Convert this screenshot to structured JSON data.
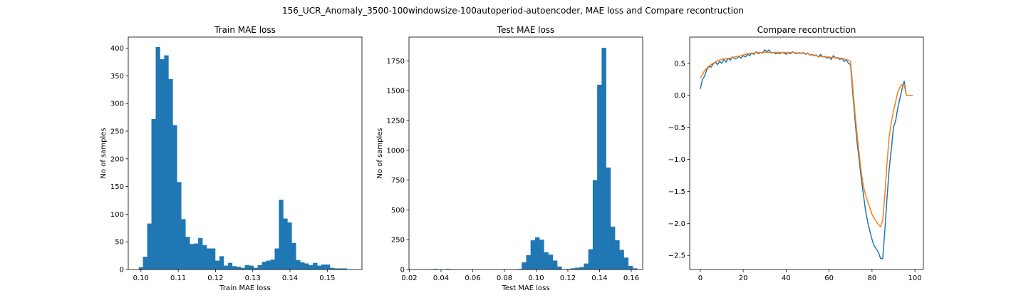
{
  "figure": {
    "suptitle": "156_UCR_Anomaly_3500-100windowsize-100autoperiod-autoencoder, MAE loss and Compare recontruction"
  },
  "chart_data": [
    {
      "type": "bar",
      "title": "Train MAE loss",
      "xlabel": "Train MAE loss",
      "ylabel": "No of samples",
      "color": "#1f77b4",
      "xlim": [
        0.0966,
        0.1593
      ],
      "ylim": [
        0,
        420
      ],
      "xticks": [
        0.1,
        0.11,
        0.12,
        0.13,
        0.14,
        0.15
      ],
      "xtick_labels": [
        "0.10",
        "0.11",
        "0.12",
        "0.13",
        "0.14",
        "0.15"
      ],
      "yticks": [
        0,
        50,
        100,
        150,
        200,
        250,
        300,
        350,
        400
      ],
      "ytick_labels": [
        "0",
        "50",
        "100",
        "150",
        "200",
        "250",
        "300",
        "350",
        "400"
      ],
      "bin_start": 0.0994,
      "bin_width": 0.00114,
      "values": [
        4,
        23,
        83,
        272,
        402,
        380,
        387,
        344,
        261,
        158,
        91,
        59,
        46,
        47,
        57,
        44,
        38,
        38,
        16,
        24,
        7,
        12,
        6,
        5,
        3,
        8,
        7,
        3,
        8,
        14,
        16,
        18,
        38,
        126,
        92,
        85,
        48,
        17,
        13,
        11,
        8,
        12,
        7,
        9,
        9,
        3,
        2,
        2,
        2,
        0
      ]
    },
    {
      "type": "bar",
      "title": "Test MAE loss",
      "xlabel": "Test MAE loss",
      "ylabel": "No of samples",
      "color": "#1f77b4",
      "xlim": [
        0.0198,
        0.1672
      ],
      "ylim": [
        0,
        1950
      ],
      "xticks": [
        0.02,
        0.04,
        0.06,
        0.08,
        0.1,
        0.12,
        0.14,
        0.16
      ],
      "xtick_labels": [
        "0.02",
        "0.04",
        "0.06",
        "0.08",
        "0.10",
        "0.12",
        "0.14",
        "0.16"
      ],
      "yticks": [
        0,
        250,
        500,
        750,
        1000,
        1250,
        1500,
        1750
      ],
      "ytick_labels": [
        "0",
        "250",
        "500",
        "750",
        "1000",
        "1250",
        "1500",
        "1750"
      ],
      "bin_start": 0.0265,
      "bin_width": 0.0028,
      "values": [
        3,
        2,
        0,
        5,
        0,
        0,
        5,
        0,
        0,
        0,
        0,
        0,
        0,
        0,
        0,
        0,
        0,
        0,
        0,
        0,
        0,
        0,
        5,
        60,
        120,
        245,
        270,
        250,
        145,
        125,
        75,
        25,
        3,
        5,
        10,
        15,
        20,
        50,
        170,
        750,
        1550,
        1860,
        855,
        360,
        245,
        165,
        100,
        30,
        10,
        0
      ]
    },
    {
      "type": "line",
      "title": "Compare recontruction",
      "xlabel": "",
      "ylabel": "",
      "xlim": [
        -4.95,
        103.95
      ],
      "ylim": [
        -2.72,
        0.91
      ],
      "xticks": [
        0,
        20,
        40,
        60,
        80,
        100
      ],
      "xtick_labels": [
        "0",
        "20",
        "40",
        "60",
        "80",
        "100"
      ],
      "yticks": [
        -2.5,
        -2.0,
        -1.5,
        -1.0,
        -0.5,
        0.0,
        0.5
      ],
      "ytick_labels": [
        "−2.5",
        "−2.0",
        "−1.5",
        "−1.0",
        "−0.5",
        "0.0",
        "0.5"
      ],
      "x": [
        0,
        1,
        2,
        3,
        4,
        5,
        6,
        7,
        8,
        9,
        10,
        11,
        12,
        13,
        14,
        15,
        16,
        17,
        18,
        19,
        20,
        21,
        22,
        23,
        24,
        25,
        26,
        27,
        28,
        29,
        30,
        31,
        32,
        33,
        34,
        35,
        36,
        37,
        38,
        39,
        40,
        41,
        42,
        43,
        44,
        45,
        46,
        47,
        48,
        49,
        50,
        51,
        52,
        53,
        54,
        55,
        56,
        57,
        58,
        59,
        60,
        61,
        62,
        63,
        64,
        65,
        66,
        67,
        68,
        69,
        70,
        71,
        72,
        73,
        74,
        75,
        76,
        77,
        78,
        79,
        80,
        81,
        82,
        83,
        84,
        85,
        86,
        87,
        88,
        89,
        90,
        91,
        92,
        93,
        94,
        95,
        96,
        97,
        98,
        99
      ],
      "series": [
        {
          "color": "#1f77b4",
          "values": [
            0.1,
            0.25,
            0.3,
            0.4,
            0.45,
            0.44,
            0.49,
            0.52,
            0.48,
            0.53,
            0.5,
            0.56,
            0.52,
            0.58,
            0.55,
            0.6,
            0.57,
            0.58,
            0.61,
            0.58,
            0.62,
            0.6,
            0.64,
            0.62,
            0.66,
            0.64,
            0.68,
            0.65,
            0.67,
            0.66,
            0.71,
            0.68,
            0.71,
            0.66,
            0.67,
            0.65,
            0.66,
            0.65,
            0.67,
            0.66,
            0.64,
            0.67,
            0.65,
            0.68,
            0.66,
            0.65,
            0.67,
            0.65,
            0.67,
            0.64,
            0.66,
            0.63,
            0.64,
            0.62,
            0.63,
            0.6,
            0.64,
            0.6,
            0.61,
            0.58,
            0.6,
            0.56,
            0.62,
            0.58,
            0.59,
            0.56,
            0.58,
            0.53,
            0.56,
            0.5,
            0.48,
            0.05,
            -0.35,
            -0.72,
            -1.0,
            -1.3,
            -1.55,
            -1.8,
            -1.98,
            -2.12,
            -2.25,
            -2.35,
            -2.4,
            -2.45,
            -2.55,
            -2.55,
            -2.1,
            -1.6,
            -1.15,
            -0.85,
            -0.5,
            -0.4,
            -0.2,
            -0.05,
            0.1,
            0.22,
            0.0,
            0.0,
            0.0,
            0.0
          ]
        },
        {
          "color": "#ff7f0e",
          "values": [
            0.27,
            0.32,
            0.39,
            0.42,
            0.46,
            0.48,
            0.5,
            0.52,
            0.54,
            0.55,
            0.56,
            0.57,
            0.57,
            0.58,
            0.58,
            0.59,
            0.6,
            0.61,
            0.61,
            0.62,
            0.63,
            0.64,
            0.65,
            0.65,
            0.66,
            0.66,
            0.67,
            0.67,
            0.67,
            0.67,
            0.67,
            0.67,
            0.67,
            0.67,
            0.67,
            0.67,
            0.67,
            0.67,
            0.67,
            0.67,
            0.67,
            0.67,
            0.67,
            0.67,
            0.67,
            0.66,
            0.66,
            0.66,
            0.66,
            0.65,
            0.65,
            0.64,
            0.63,
            0.62,
            0.62,
            0.61,
            0.61,
            0.6,
            0.6,
            0.6,
            0.6,
            0.59,
            0.59,
            0.59,
            0.58,
            0.58,
            0.58,
            0.57,
            0.56,
            0.55,
            0.53,
            0.15,
            -0.25,
            -0.6,
            -0.9,
            -1.2,
            -1.42,
            -1.55,
            -1.66,
            -1.75,
            -1.86,
            -1.92,
            -1.97,
            -2.02,
            -2.05,
            -1.95,
            -1.55,
            -1.05,
            -0.65,
            -0.42,
            -0.25,
            -0.1,
            0.05,
            0.13,
            0.17,
            0.17,
            0.0,
            0.0,
            0.0,
            0.0
          ]
        }
      ]
    }
  ]
}
